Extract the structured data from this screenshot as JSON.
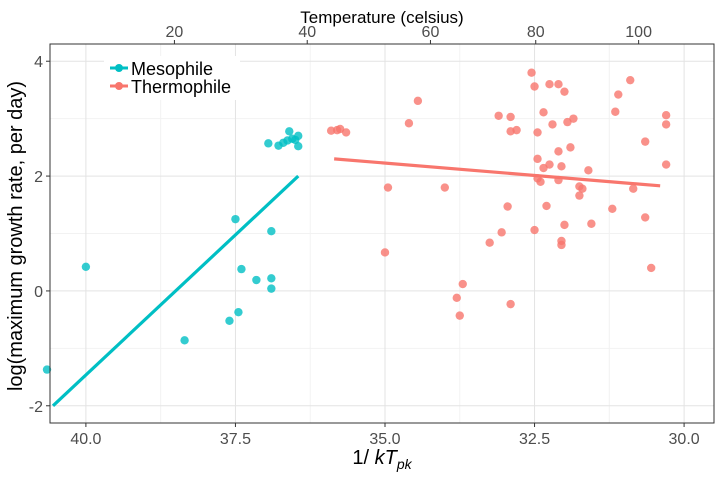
{
  "chart_data": {
    "type": "scatter",
    "xlabel_main": "1/ ",
    "xlabel_italic": "kT",
    "xlabel_sub": "pk",
    "ylabel": "log(maximum growth rate, per day)",
    "top_axis_title": "Temperature (celsius)",
    "xlim": [
      40.6,
      29.5
    ],
    "ylim": [
      -2.3,
      4.3
    ],
    "x_ticks": [
      40.0,
      37.5,
      35.0,
      32.5,
      30.0
    ],
    "x_tick_labels": [
      "40.0",
      "37.5",
      "35.0",
      "32.5",
      "30.0"
    ],
    "y_ticks": [
      -2,
      0,
      2,
      4
    ],
    "y_tick_labels": [
      "-2",
      "0",
      "2",
      "4"
    ],
    "top_ticks": [
      {
        "label": "20",
        "at_invkt": 38.52
      },
      {
        "label": "40",
        "at_invkt": 36.3
      },
      {
        "label": "60",
        "at_invkt": 34.24
      },
      {
        "label": "80",
        "at_invkt": 32.48
      },
      {
        "label": "100",
        "at_invkt": 30.76
      }
    ],
    "legend_position": "top-left",
    "grid": true,
    "series": [
      {
        "name": "Mesophile",
        "color": "#00BFC4",
        "points": [
          [
            40.65,
            -1.37
          ],
          [
            40.0,
            0.42
          ],
          [
            38.35,
            -0.86
          ],
          [
            37.6,
            -0.52
          ],
          [
            37.45,
            -0.37
          ],
          [
            37.4,
            0.38
          ],
          [
            37.5,
            1.25
          ],
          [
            37.15,
            0.19
          ],
          [
            36.9,
            0.22
          ],
          [
            36.9,
            0.04
          ],
          [
            36.9,
            1.04
          ],
          [
            36.95,
            2.57
          ],
          [
            36.78,
            2.53
          ],
          [
            36.7,
            2.58
          ],
          [
            36.63,
            2.62
          ],
          [
            36.6,
            2.78
          ],
          [
            36.55,
            2.65
          ],
          [
            36.5,
            2.63
          ],
          [
            36.45,
            2.7
          ],
          [
            36.45,
            2.52
          ]
        ],
        "fit": [
          [
            40.55,
            -2.0
          ],
          [
            36.45,
            2.0
          ]
        ]
      },
      {
        "name": "Thermophile",
        "color": "#F8766D",
        "points": [
          [
            35.9,
            2.79
          ],
          [
            35.8,
            2.8
          ],
          [
            35.75,
            2.82
          ],
          [
            35.65,
            2.76
          ],
          [
            34.95,
            1.8
          ],
          [
            35.0,
            0.67
          ],
          [
            34.45,
            3.31
          ],
          [
            34.6,
            2.92
          ],
          [
            34.0,
            1.8
          ],
          [
            33.8,
            -0.12
          ],
          [
            33.75,
            -0.43
          ],
          [
            33.7,
            0.12
          ],
          [
            33.25,
            0.84
          ],
          [
            33.05,
            1.02
          ],
          [
            32.9,
            -0.23
          ],
          [
            32.95,
            1.47
          ],
          [
            32.9,
            2.78
          ],
          [
            33.1,
            3.05
          ],
          [
            32.8,
            2.8
          ],
          [
            32.9,
            3.03
          ],
          [
            32.55,
            3.8
          ],
          [
            32.5,
            1.06
          ],
          [
            32.45,
            1.96
          ],
          [
            32.4,
            1.9
          ],
          [
            32.3,
            1.48
          ],
          [
            32.5,
            3.56
          ],
          [
            32.45,
            2.76
          ],
          [
            32.35,
            3.11
          ],
          [
            32.25,
            3.6
          ],
          [
            32.1,
            3.6
          ],
          [
            32.2,
            2.9
          ],
          [
            32.1,
            2.43
          ],
          [
            32.05,
            0.87
          ],
          [
            32.05,
            0.8
          ],
          [
            32.0,
            1.15
          ],
          [
            32.05,
            2.17
          ],
          [
            32.45,
            2.3
          ],
          [
            32.25,
            2.2
          ],
          [
            32.1,
            1.93
          ],
          [
            32.0,
            3.47
          ],
          [
            31.95,
            2.94
          ],
          [
            31.9,
            2.5
          ],
          [
            31.85,
            3.0
          ],
          [
            31.75,
            1.82
          ],
          [
            31.7,
            1.78
          ],
          [
            31.75,
            1.66
          ],
          [
            31.6,
            2.1
          ],
          [
            31.55,
            1.17
          ],
          [
            31.2,
            1.43
          ],
          [
            31.15,
            3.12
          ],
          [
            31.1,
            3.42
          ],
          [
            30.9,
            3.67
          ],
          [
            30.85,
            1.78
          ],
          [
            30.65,
            2.6
          ],
          [
            30.65,
            1.28
          ],
          [
            30.55,
            0.4
          ],
          [
            30.3,
            2.2
          ],
          [
            30.3,
            2.9
          ],
          [
            30.3,
            3.06
          ],
          [
            32.35,
            2.14
          ]
        ],
        "fit": [
          [
            35.85,
            2.3
          ],
          [
            30.4,
            1.83
          ]
        ]
      }
    ]
  }
}
